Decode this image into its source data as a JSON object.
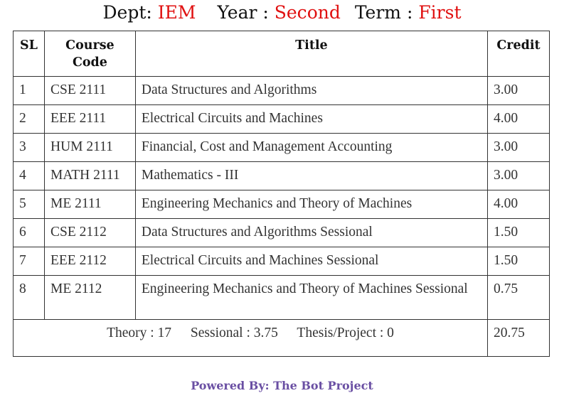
{
  "heading": {
    "dept_label": "Dept:",
    "dept_value": "IEM",
    "year_label": "Year :",
    "year_value": "Second",
    "term_label": "Term :",
    "term_value": "First",
    "accent_color": "#e01010"
  },
  "table": {
    "headers": {
      "sl": "SL",
      "code_line1": "Course",
      "code_line2": "Code",
      "title": "Title",
      "credit": "Credit"
    },
    "rows": [
      {
        "sl": "1",
        "code": "CSE 2111",
        "title": "Data Structures and Algorithms",
        "credit": "3.00"
      },
      {
        "sl": "2",
        "code": "EEE 2111",
        "title": "Electrical Circuits and Machines",
        "credit": "4.00"
      },
      {
        "sl": "3",
        "code": "HUM 2111",
        "title": "Financial, Cost and Management Accounting",
        "credit": "3.00"
      },
      {
        "sl": "4",
        "code": "MATH 2111",
        "title": "Mathematics - III",
        "credit": "3.00"
      },
      {
        "sl": "5",
        "code": "ME 2111",
        "title": "Engineering Mechanics and Theory of Machines",
        "credit": "4.00"
      },
      {
        "sl": "6",
        "code": "CSE 2112",
        "title": "Data Structures and Algorithms Sessional",
        "credit": "1.50"
      },
      {
        "sl": "7",
        "code": "EEE 2112",
        "title": "Electrical Circuits and Machines Sessional",
        "credit": "1.50"
      },
      {
        "sl": "8",
        "code": "ME 2112",
        "title": "Engineering Mechanics and Theory of Machines Sessional",
        "credit": "0.75"
      }
    ],
    "summary": {
      "theory": "Theory : 17",
      "sessional": "Sessional : 3.75",
      "thesis": "Thesis/Project : 0",
      "total_credit": "20.75"
    }
  },
  "footer": {
    "text": "Powered By: The Bot Project",
    "color": "#6a4fa3"
  }
}
